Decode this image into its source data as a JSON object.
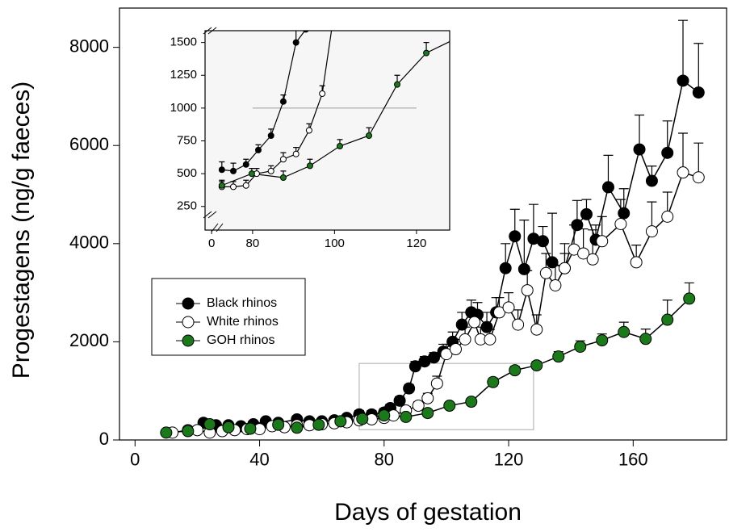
{
  "chart_data": [
    {
      "type": "line",
      "ylabel": "Progestagens (ng/g faeces)",
      "xlabel": "Days of gestation",
      "xlim": [
        -5,
        190
      ],
      "ylim": [
        0,
        8800
      ],
      "xticks": [
        0,
        40,
        80,
        120,
        160
      ],
      "yticks": [
        0,
        2000,
        4000,
        6000,
        8000
      ],
      "legend": "center left",
      "zoom_box": {
        "x": [
          72,
          128
        ],
        "y": [
          210,
          1560
        ]
      },
      "series": [
        {
          "name": "Black rhinos",
          "color": "#000000",
          "x": [
            22,
            26,
            30,
            34,
            38,
            42,
            46,
            52,
            56,
            60,
            64,
            68,
            72,
            76,
            80,
            82,
            85,
            88,
            90,
            93,
            96,
            99,
            102,
            105,
            108,
            110,
            113,
            116,
            119,
            122,
            125,
            128,
            131,
            134,
            138,
            142,
            145,
            148,
            152,
            157,
            162,
            166,
            171,
            176,
            181
          ],
          "values": [
            350,
            300,
            300,
            280,
            320,
            380,
            350,
            420,
            380,
            380,
            400,
            450,
            520,
            520,
            560,
            650,
            800,
            1050,
            1500,
            1600,
            1680,
            1800,
            2000,
            2350,
            2600,
            2550,
            2300,
            2600,
            3500,
            4150,
            3480,
            4100,
            4050,
            3620,
            3500,
            4380,
            4600,
            4080,
            5150,
            4620,
            5920,
            5280,
            5850,
            7320,
            7080
          ],
          "errors": [
            60,
            60,
            60,
            60,
            60,
            60,
            60,
            60,
            60,
            60,
            60,
            60,
            80,
            80,
            80,
            80,
            80,
            80,
            100,
            100,
            100,
            150,
            200,
            250,
            250,
            250,
            300,
            300,
            500,
            550,
            1000,
            700,
            300,
            1000,
            300,
            500,
            300,
            300,
            650,
            500,
            700,
            300,
            650,
            1230,
            1000
          ]
        },
        {
          "name": "White rhinos",
          "color": "#ffffff",
          "x": [
            12,
            17,
            20,
            24,
            28,
            32,
            36,
            40,
            44,
            48,
            52,
            56,
            60,
            64,
            68,
            72,
            76,
            80,
            83,
            87,
            91,
            94,
            97,
            100,
            103,
            106,
            109,
            111,
            114,
            117,
            120,
            123,
            126,
            129,
            132,
            135,
            138,
            141,
            144,
            147,
            150,
            156,
            161,
            166,
            171,
            176,
            181
          ],
          "values": [
            150,
            200,
            200,
            150,
            180,
            200,
            220,
            220,
            280,
            260,
            300,
            300,
            320,
            340,
            360,
            400,
            420,
            450,
            500,
            600,
            700,
            850,
            1150,
            1750,
            1850,
            2050,
            2400,
            2050,
            2050,
            2600,
            2700,
            2350,
            3050,
            2250,
            3400,
            3150,
            3500,
            3880,
            3800,
            3680,
            4050,
            4400,
            3620,
            4250,
            4550,
            5450,
            5350
          ],
          "errors": [
            50,
            50,
            50,
            50,
            50,
            50,
            50,
            50,
            50,
            50,
            50,
            50,
            50,
            50,
            50,
            60,
            60,
            60,
            60,
            80,
            80,
            100,
            150,
            200,
            200,
            250,
            250,
            250,
            200,
            300,
            300,
            300,
            400,
            300,
            400,
            400,
            500,
            500,
            500,
            600,
            500,
            500,
            350,
            600,
            500,
            800,
            700
          ]
        },
        {
          "name": "GOH rhinos",
          "color": "#1a7a1a",
          "x": [
            10,
            17,
            24,
            30,
            37,
            46,
            52,
            59,
            66,
            73,
            80,
            87,
            94,
            101,
            108,
            115,
            122,
            129,
            136,
            143,
            150,
            157,
            164,
            171,
            178
          ],
          "values": [
            150,
            180,
            320,
            260,
            230,
            310,
            250,
            310,
            380,
            430,
            500,
            470,
            550,
            700,
            780,
            1180,
            1420,
            1520,
            1700,
            1900,
            2030,
            2200,
            2060,
            2450,
            2880
          ],
          "errors": [
            40,
            40,
            40,
            40,
            40,
            40,
            40,
            40,
            40,
            50,
            50,
            50,
            60,
            60,
            60,
            80,
            80,
            80,
            100,
            120,
            130,
            200,
            200,
            400,
            320
          ]
        }
      ]
    },
    {
      "type": "line",
      "xlim": [
        68.4,
        128.1
      ],
      "ylim": [
        70,
        1590
      ],
      "xticks": [
        {
          "value": 70,
          "label": "0"
        },
        80,
        100,
        120
      ],
      "yticks": [
        250,
        500,
        750,
        1000,
        1250,
        1500
      ],
      "reference_line": {
        "y": 1000,
        "x": [
          80,
          120
        ]
      },
      "series": [
        {
          "color": "#000000",
          "x": [
            72.5,
            75.3,
            78.4,
            81.4,
            84.5,
            87.5,
            90.6,
            93
          ],
          "values": [
            530,
            520,
            570,
            680,
            790,
            1050,
            1500,
            1600
          ],
          "errors": [
            60,
            60,
            40,
            40,
            50,
            50,
            100,
            100
          ]
        },
        {
          "color": "#ffffff",
          "x": [
            72.5,
            75.3,
            78.4,
            81,
            84.5,
            87.5,
            90.6,
            93.8,
            97,
            100
          ],
          "values": [
            400,
            400,
            410,
            500,
            520,
            610,
            650,
            830,
            1110,
            1750
          ],
          "errors": [
            40,
            40,
            40,
            40,
            40,
            50,
            50,
            50,
            60,
            100
          ]
        },
        {
          "color": "#1a7a1a",
          "x": [
            72.5,
            79.8,
            87.5,
            94,
            101.3,
            108.4,
            115.3,
            122.4,
            129
          ],
          "values": [
            410,
            500,
            470,
            560,
            710,
            790,
            1180,
            1420,
            1520
          ],
          "errors": [
            40,
            40,
            50,
            50,
            50,
            60,
            70,
            80,
            80
          ]
        }
      ]
    }
  ]
}
